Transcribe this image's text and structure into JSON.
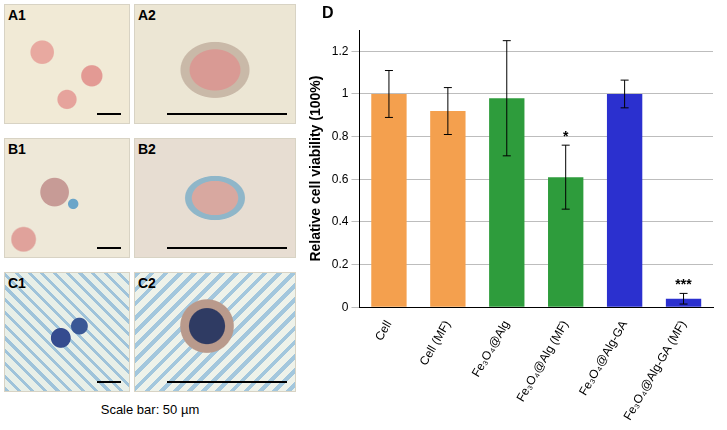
{
  "panels": {
    "labels": [
      "A1",
      "A2",
      "B1",
      "B2",
      "C1",
      "C2"
    ],
    "scale_bar": "Scale bar: 50 µm"
  },
  "chart_data": {
    "type": "bar",
    "panel_label": "D",
    "y_label": "Relative cell viability (100%)",
    "categories": [
      "Cell",
      "Cell (MF)",
      "Fe₃O₄@Alg",
      "Fe₃O₄@Alg (MF)",
      "Fe₃O₄@Alg-GA",
      "Fe₃O₄@Alg-GA (MF)"
    ],
    "values": [
      1.0,
      0.92,
      0.98,
      0.61,
      1.0,
      0.04
    ],
    "errors": [
      0.11,
      0.11,
      0.27,
      0.15,
      0.065,
      0.025
    ],
    "significance": [
      null,
      null,
      null,
      "*",
      null,
      "***"
    ],
    "colors": [
      "#f4a04e",
      "#f4a04e",
      "#2e9c3c",
      "#2e9c3c",
      "#2b30cf",
      "#2b30cf"
    ],
    "ylim": [
      0,
      1.3
    ],
    "yticks": [
      0,
      0.2,
      0.4,
      0.6,
      0.8,
      1,
      1.2
    ],
    "grid": true
  }
}
